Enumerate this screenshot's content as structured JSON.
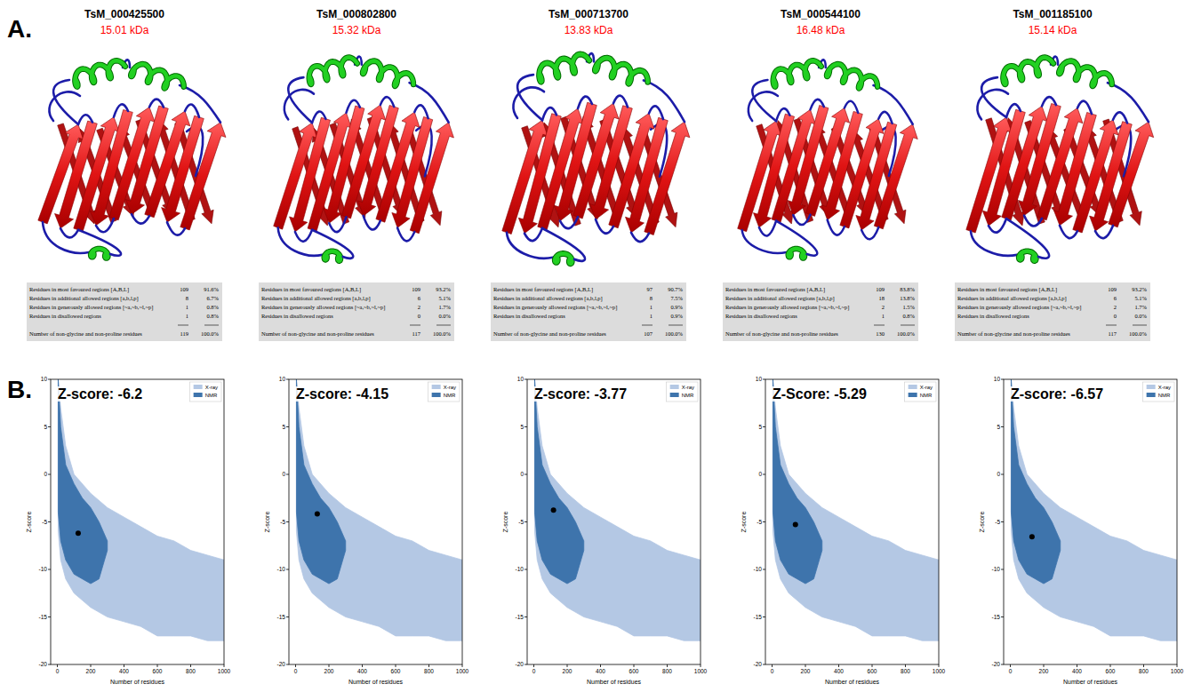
{
  "panel_labels": {
    "a": "A.",
    "b": "B."
  },
  "ramachandran_row_labels": [
    "Residues in most favoured regions [A,B,L]",
    "Residues in additional allowed regions [a,b,l,p]",
    "Residues in generously allowed regions [~a,~b,~l,~p]",
    "Residues in disallowed regions",
    "Number of non-glycine and non-proline residues"
  ],
  "structures": [
    {
      "id": "TsM_000425500",
      "mass": "15.01 kDa",
      "counts": [
        109,
        8,
        1,
        1,
        119
      ],
      "percents": [
        "91.6%",
        "6.7%",
        "0.8%",
        "0.8%",
        "100.0%"
      ]
    },
    {
      "id": "TsM_000802800",
      "mass": "15.32 kDa",
      "counts": [
        109,
        6,
        2,
        0,
        117
      ],
      "percents": [
        "93.2%",
        "5.1%",
        "1.7%",
        "0.0%",
        "100.0%"
      ]
    },
    {
      "id": "TsM_000713700",
      "mass": "13.83 kDa",
      "counts": [
        97,
        8,
        1,
        1,
        107
      ],
      "percents": [
        "90.7%",
        "7.5%",
        "0.9%",
        "0.9%",
        "100.0%"
      ]
    },
    {
      "id": "TsM_000544100",
      "mass": "16.48 kDa",
      "counts": [
        109,
        18,
        2,
        1,
        130
      ],
      "percents": [
        "83.8%",
        "13.8%",
        "1.5%",
        "0.8%",
        "100.0%"
      ]
    },
    {
      "id": "TsM_001185100",
      "mass": "15.14 kDa",
      "counts": [
        109,
        6,
        2,
        0,
        117
      ],
      "percents": [
        "93.2%",
        "5.1%",
        "1.7%",
        "0.0%",
        "100.0%"
      ]
    }
  ],
  "chart_data": [
    {
      "type": "scatter",
      "annotation": "Z-score: -6.2",
      "x_label": "Number of residues",
      "y_label": "Z-score",
      "xlim": [
        -40,
        1000
      ],
      "ylim": [
        -20,
        10
      ],
      "xticks": [
        0,
        200,
        400,
        600,
        800,
        1000
      ],
      "yticks": [
        -20,
        -15,
        -10,
        -5,
        0,
        5,
        10
      ],
      "legend": "upper right",
      "series": [
        {
          "name": "X-ray",
          "type": "area",
          "color": "#b4c8e4",
          "x": [
            5,
            20,
            50,
            100,
            200,
            300,
            400,
            500,
            600,
            700,
            800,
            900,
            1000
          ],
          "values": [
            10,
            7,
            3,
            0,
            -2,
            -3.5,
            -4.5,
            -5.5,
            -6.5,
            -7,
            -8,
            -8.5,
            -9
          ],
          "lower": [
            -6,
            -9,
            -11,
            -12.5,
            -14,
            -15,
            -15.5,
            -16,
            -17,
            -17,
            -17,
            -17.5,
            -17.5
          ]
        },
        {
          "name": "NMR",
          "type": "area",
          "color": "#3e74ac",
          "x": [
            5,
            20,
            50,
            100,
            150,
            200,
            250,
            300
          ],
          "values": [
            10,
            5,
            1,
            -1,
            -2.5,
            -3.5,
            -5,
            -7
          ],
          "lower": [
            -4,
            -7,
            -9,
            -10.5,
            -11,
            -11.5,
            -11,
            -8
          ]
        },
        {
          "type": "scatter",
          "color": "#000000",
          "marker": "circle",
          "x": [
            125
          ],
          "values": [
            -6.2
          ]
        }
      ]
    },
    {
      "type": "scatter",
      "annotation": "Z-score: -4.15",
      "x_label": "Number of residues",
      "y_label": "Z-score",
      "xlim": [
        -40,
        1000
      ],
      "ylim": [
        -20,
        10
      ],
      "xticks": [
        0,
        200,
        400,
        600,
        800,
        1000
      ],
      "yticks": [
        -20,
        -15,
        -10,
        -5,
        0,
        5,
        10
      ],
      "legend": "upper right",
      "series": [
        {
          "name": "X-ray",
          "type": "area",
          "color": "#b4c8e4",
          "x": [
            5,
            20,
            50,
            100,
            200,
            300,
            400,
            500,
            600,
            700,
            800,
            900,
            1000
          ],
          "values": [
            10,
            7,
            3,
            0,
            -2,
            -3.5,
            -4.5,
            -5.5,
            -6.5,
            -7,
            -8,
            -8.5,
            -9
          ],
          "lower": [
            -6,
            -9,
            -11,
            -12.5,
            -14,
            -15,
            -15.5,
            -16,
            -17,
            -17,
            -17,
            -17.5,
            -17.5
          ]
        },
        {
          "name": "NMR",
          "type": "area",
          "color": "#3e74ac",
          "x": [
            5,
            20,
            50,
            100,
            150,
            200,
            250,
            300
          ],
          "values": [
            10,
            5,
            1,
            -1,
            -2.5,
            -3.5,
            -5,
            -7
          ],
          "lower": [
            -4,
            -7,
            -9,
            -10.5,
            -11,
            -11.5,
            -11,
            -8
          ]
        },
        {
          "type": "scatter",
          "color": "#000000",
          "marker": "circle",
          "x": [
            130
          ],
          "values": [
            -4.15
          ]
        }
      ]
    },
    {
      "type": "scatter",
      "annotation": "Z-score: -3.77",
      "x_label": "Number of residues",
      "y_label": "Z-score",
      "xlim": [
        -40,
        1000
      ],
      "ylim": [
        -20,
        10
      ],
      "xticks": [
        0,
        200,
        400,
        600,
        800,
        1000
      ],
      "yticks": [
        -20,
        -15,
        -10,
        -5,
        0,
        5,
        10
      ],
      "legend": "upper right",
      "series": [
        {
          "name": "X-ray",
          "type": "area",
          "color": "#b4c8e4",
          "x": [
            5,
            20,
            50,
            100,
            200,
            300,
            400,
            500,
            600,
            700,
            800,
            900,
            1000
          ],
          "values": [
            10,
            7,
            3,
            0,
            -2,
            -3.5,
            -4.5,
            -5.5,
            -6.5,
            -7,
            -8,
            -8.5,
            -9
          ],
          "lower": [
            -6,
            -9,
            -11,
            -12.5,
            -14,
            -15,
            -15.5,
            -16,
            -17,
            -17,
            -17,
            -17.5,
            -17.5
          ]
        },
        {
          "name": "NMR",
          "type": "area",
          "color": "#3e74ac",
          "x": [
            5,
            20,
            50,
            100,
            150,
            200,
            250,
            300
          ],
          "values": [
            10,
            5,
            1,
            -1,
            -2.5,
            -3.5,
            -5,
            -7
          ],
          "lower": [
            -4,
            -7,
            -9,
            -10.5,
            -11,
            -11.5,
            -11,
            -8
          ]
        },
        {
          "type": "scatter",
          "color": "#000000",
          "marker": "circle",
          "x": [
            118
          ],
          "values": [
            -3.77
          ]
        }
      ]
    },
    {
      "type": "scatter",
      "annotation": "Z-Score: -5.29",
      "x_label": "Number of residues",
      "y_label": "Z-score",
      "xlim": [
        -40,
        1000
      ],
      "ylim": [
        -20,
        10
      ],
      "xticks": [
        0,
        200,
        400,
        600,
        800,
        1000
      ],
      "yticks": [
        -20,
        -15,
        -10,
        -5,
        0,
        5,
        10
      ],
      "legend": "upper right",
      "series": [
        {
          "name": "X-ray",
          "type": "area",
          "color": "#b4c8e4",
          "x": [
            5,
            20,
            50,
            100,
            200,
            300,
            400,
            500,
            600,
            700,
            800,
            900,
            1000
          ],
          "values": [
            10,
            7,
            3,
            0,
            -2,
            -3.5,
            -4.5,
            -5.5,
            -6.5,
            -7,
            -8,
            -8.5,
            -9
          ],
          "lower": [
            -6,
            -9,
            -11,
            -12.5,
            -14,
            -15,
            -15.5,
            -16,
            -17,
            -17,
            -17,
            -17.5,
            -17.5
          ]
        },
        {
          "name": "NMR",
          "type": "area",
          "color": "#3e74ac",
          "x": [
            5,
            20,
            50,
            100,
            150,
            200,
            250,
            300
          ],
          "values": [
            10,
            5,
            1,
            -1,
            -2.5,
            -3.5,
            -5,
            -7
          ],
          "lower": [
            -4,
            -7,
            -9,
            -10.5,
            -11,
            -11.5,
            -11,
            -8
          ]
        },
        {
          "type": "scatter",
          "color": "#000000",
          "marker": "circle",
          "x": [
            140
          ],
          "values": [
            -5.29
          ]
        }
      ]
    },
    {
      "type": "scatter",
      "annotation": "Z-score: -6.57",
      "x_label": "Number of residues",
      "y_label": "Z-score",
      "xlim": [
        -40,
        1000
      ],
      "ylim": [
        -20,
        10
      ],
      "xticks": [
        0,
        200,
        400,
        600,
        800,
        1000
      ],
      "yticks": [
        -20,
        -15,
        -10,
        -5,
        0,
        5,
        10
      ],
      "legend": "upper right",
      "series": [
        {
          "name": "X-ray",
          "type": "area",
          "color": "#b4c8e4",
          "x": [
            5,
            20,
            50,
            100,
            200,
            300,
            400,
            500,
            600,
            700,
            800,
            900,
            1000
          ],
          "values": [
            10,
            7,
            3,
            0,
            -2,
            -3.5,
            -4.5,
            -5.5,
            -6.5,
            -7,
            -8,
            -8.5,
            -9
          ],
          "lower": [
            -6,
            -9,
            -11,
            -12.5,
            -14,
            -15,
            -15.5,
            -16,
            -17,
            -17,
            -17,
            -17.5,
            -17.5
          ]
        },
        {
          "name": "NMR",
          "type": "area",
          "color": "#3e74ac",
          "x": [
            5,
            20,
            50,
            100,
            150,
            200,
            250,
            300
          ],
          "values": [
            10,
            5,
            1,
            -1,
            -2.5,
            -3.5,
            -5,
            -7
          ],
          "lower": [
            -4,
            -7,
            -9,
            -10.5,
            -11,
            -11.5,
            -11,
            -8
          ]
        },
        {
          "type": "scatter",
          "color": "#000000",
          "marker": "circle",
          "x": [
            130
          ],
          "values": [
            -6.57
          ]
        }
      ]
    }
  ]
}
